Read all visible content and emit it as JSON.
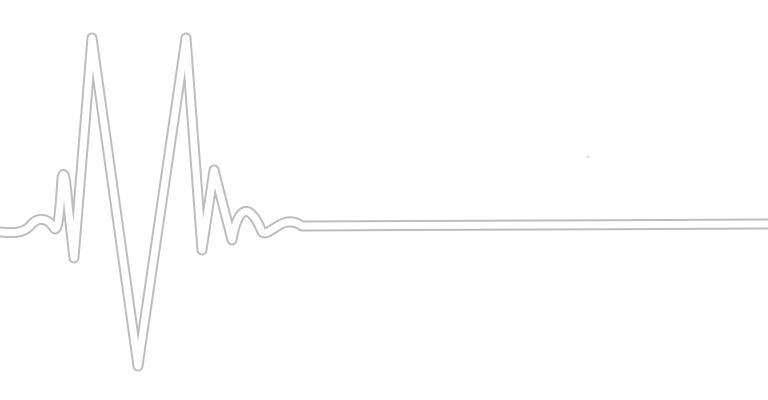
{
  "graphic": {
    "subject": "heartbeat-pulse-line",
    "colors": {
      "background": "#ffffff",
      "outline": "#bdbdbd",
      "fill": "#ffffff"
    }
  }
}
